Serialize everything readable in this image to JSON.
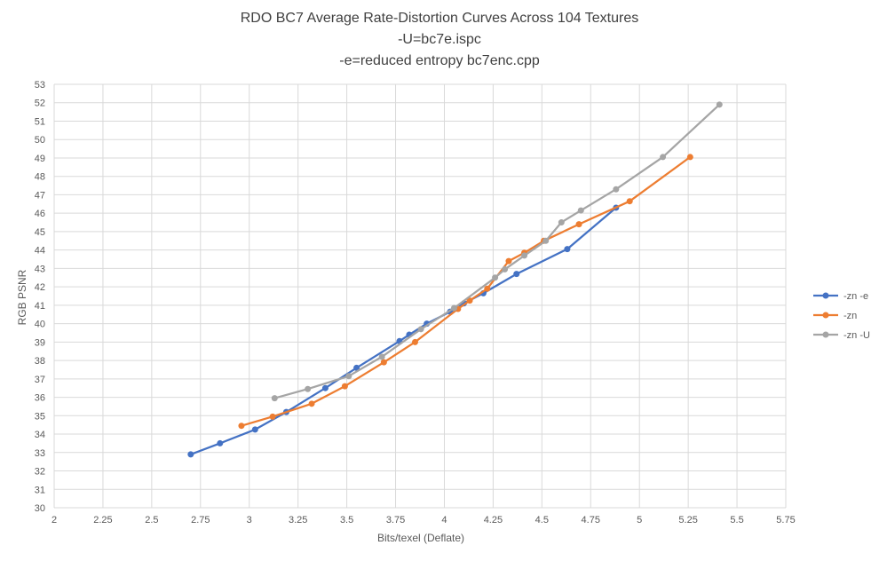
{
  "chart_data": {
    "type": "line",
    "title": "RDO BC7 Average Rate-Distortion Curves Across 104 Textures",
    "subtitle_lines": [
      "-U=bc7e.ispc",
      "-e=reduced entropy bc7enc.cpp"
    ],
    "xlabel": "Bits/texel (Deflate)",
    "ylabel": "RGB PSNR",
    "xlim": [
      2,
      5.75
    ],
    "ylim": [
      30,
      53
    ],
    "x_ticks": [
      "2",
      "2.25",
      "2.5",
      "2.75",
      "3",
      "3.25",
      "3.5",
      "3.75",
      "4",
      "4.25",
      "4.5",
      "4.75",
      "5",
      "5.25",
      "5.5",
      "5.75"
    ],
    "y_ticks": [
      "30",
      "31",
      "32",
      "33",
      "34",
      "35",
      "36",
      "37",
      "38",
      "39",
      "40",
      "41",
      "42",
      "43",
      "44",
      "45",
      "46",
      "47",
      "48",
      "49",
      "50",
      "51",
      "52",
      "53"
    ],
    "grid": true,
    "legend_position": "right",
    "series": [
      {
        "name": "-zn -e",
        "color": "#4472C4",
        "points": [
          [
            2.7,
            32.9
          ],
          [
            2.85,
            33.5
          ],
          [
            3.03,
            34.25
          ],
          [
            3.19,
            35.2
          ],
          [
            3.39,
            36.5
          ],
          [
            3.55,
            37.6
          ],
          [
            3.77,
            39.05
          ],
          [
            3.82,
            39.4
          ],
          [
            3.91,
            40.0
          ],
          [
            4.03,
            40.65
          ],
          [
            4.1,
            41.1
          ],
          [
            4.2,
            41.65
          ],
          [
            4.37,
            42.7
          ],
          [
            4.63,
            44.05
          ],
          [
            4.88,
            46.3
          ]
        ]
      },
      {
        "name": "-zn",
        "color": "#ED7D31",
        "points": [
          [
            2.96,
            34.45
          ],
          [
            3.12,
            34.95
          ],
          [
            3.32,
            35.65
          ],
          [
            3.49,
            36.6
          ],
          [
            3.69,
            37.9
          ],
          [
            3.85,
            39.0
          ],
          [
            4.07,
            40.8
          ],
          [
            4.13,
            41.25
          ],
          [
            4.22,
            41.9
          ],
          [
            4.33,
            43.4
          ],
          [
            4.41,
            43.85
          ],
          [
            4.51,
            44.5
          ],
          [
            4.69,
            45.4
          ],
          [
            4.95,
            46.65
          ],
          [
            5.26,
            49.05
          ]
        ]
      },
      {
        "name": "-zn -U",
        "color": "#A5A5A5",
        "points": [
          [
            3.13,
            35.95
          ],
          [
            3.3,
            36.45
          ],
          [
            3.51,
            37.15
          ],
          [
            3.68,
            38.2
          ],
          [
            3.88,
            39.7
          ],
          [
            4.05,
            40.85
          ],
          [
            4.26,
            42.5
          ],
          [
            4.31,
            42.95
          ],
          [
            4.41,
            43.7
          ],
          [
            4.52,
            44.5
          ],
          [
            4.6,
            45.5
          ],
          [
            4.7,
            46.15
          ],
          [
            4.88,
            47.3
          ],
          [
            5.12,
            49.05
          ],
          [
            5.41,
            51.9
          ]
        ]
      }
    ]
  }
}
